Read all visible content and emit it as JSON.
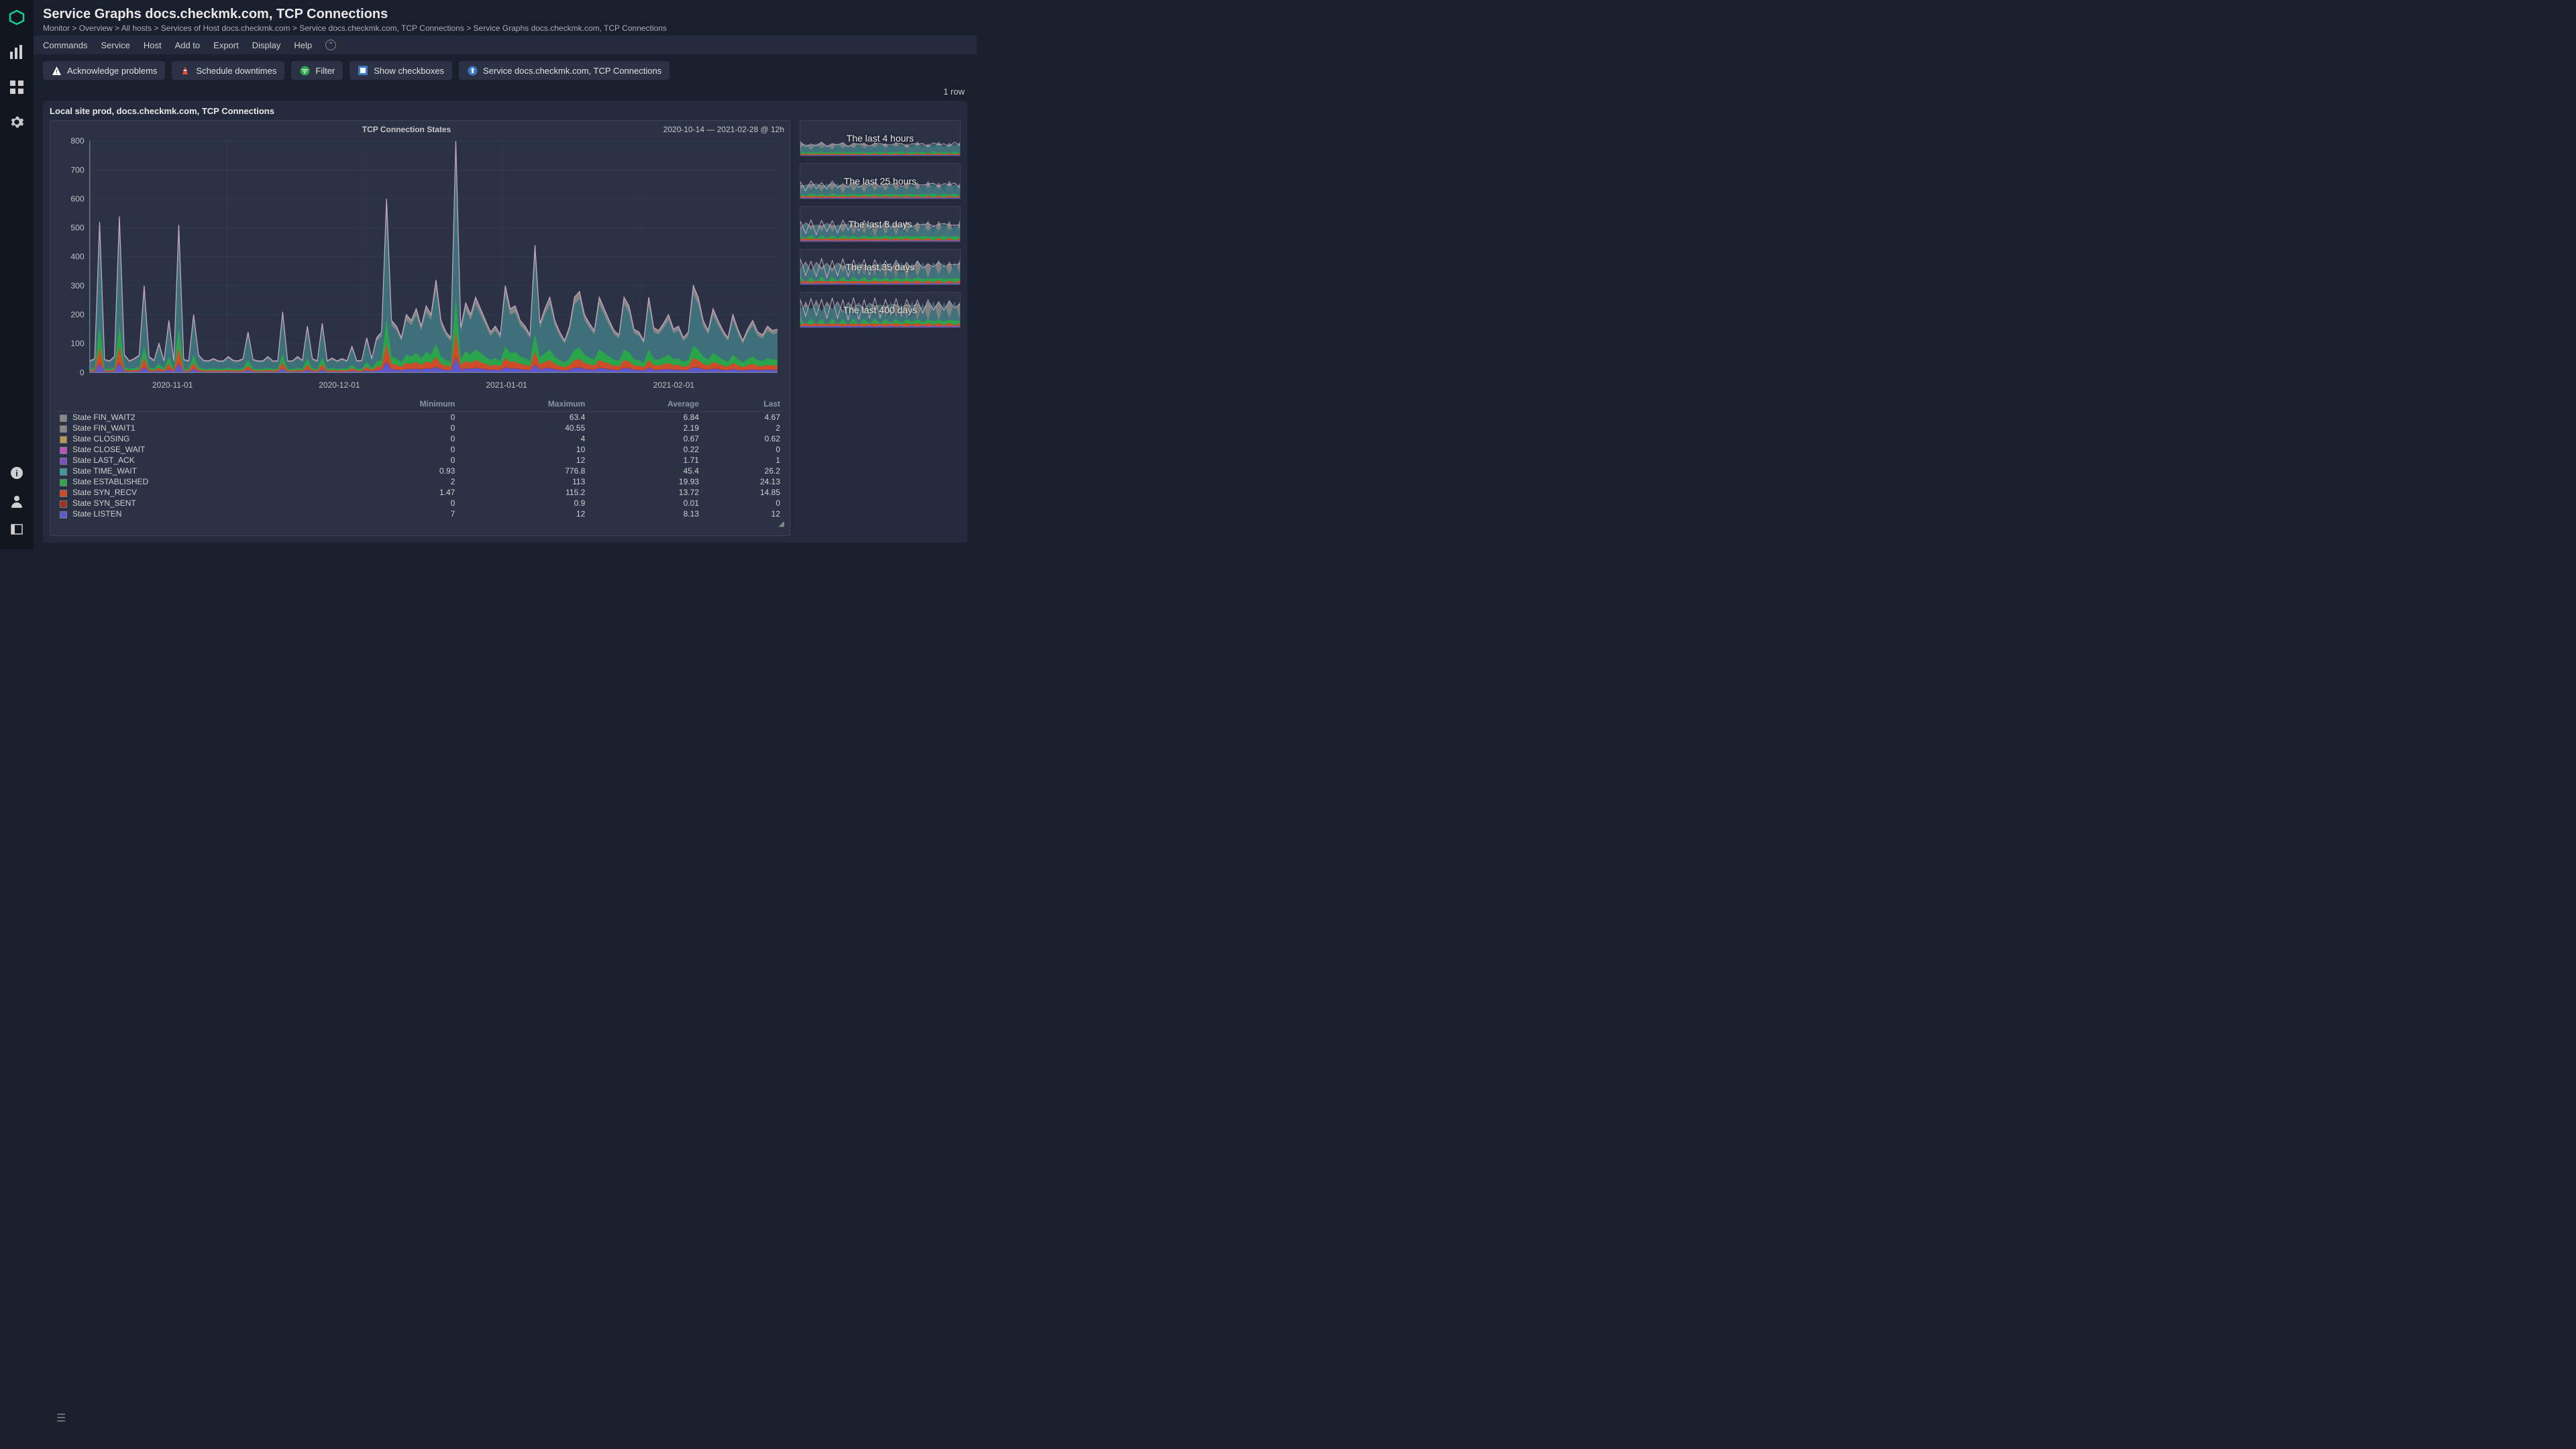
{
  "page": {
    "title": "Service Graphs docs.checkmk.com, TCP Connections",
    "breadcrumb": [
      "Monitor",
      "Overview",
      "All hosts",
      "Services of Host docs.checkmk.com",
      "Service docs.checkmk.com, TCP Connections",
      "Service Graphs docs.checkmk.com, TCP Connections"
    ],
    "breadcrumb_sep": ">"
  },
  "menubar": {
    "items": [
      "Commands",
      "Service",
      "Host",
      "Add to",
      "Export",
      "Display",
      "Help"
    ]
  },
  "toolbar": {
    "ack": "Acknowledge problems",
    "downtime": "Schedule downtimes",
    "filter": "Filter",
    "checkboxes": "Show checkboxes",
    "service_link": "Service docs.checkmk.com, TCP Connections"
  },
  "rowcount": "1 row",
  "panel": {
    "header": "Local site prod, docs.checkmk.com, TCP Connections"
  },
  "graph": {
    "title": "TCP Connection States",
    "range_label": "2020-10-14 — 2021-02-28 @ 12h",
    "type": "stacked-area",
    "ylim": [
      0,
      800
    ],
    "ytick_step": 100,
    "yticks": [
      0,
      100,
      200,
      300,
      400,
      500,
      600,
      700,
      800
    ],
    "xticks": [
      "2020-11-01",
      "2020-12-01",
      "2021-01-01",
      "2021-02-01"
    ],
    "gridline_color": "#3a4258",
    "background_color": "#2b3245",
    "n_points": 140,
    "total_series": [
      40,
      48,
      520,
      45,
      40,
      55,
      540,
      62,
      40,
      48,
      60,
      300,
      55,
      42,
      100,
      40,
      180,
      40,
      510,
      45,
      40,
      200,
      60,
      42,
      40,
      48,
      40,
      40,
      55,
      42,
      40,
      48,
      140,
      45,
      40,
      40,
      55,
      40,
      40,
      210,
      40,
      40,
      55,
      42,
      160,
      48,
      40,
      170,
      40,
      50,
      40,
      48,
      40,
      90,
      40,
      42,
      120,
      48,
      120,
      140,
      600,
      180,
      160,
      120,
      200,
      180,
      220,
      160,
      230,
      200,
      320,
      180,
      140,
      120,
      850,
      155,
      240,
      200,
      260,
      220,
      180,
      140,
      160,
      130,
      300,
      220,
      230,
      180,
      160,
      130,
      440,
      170,
      220,
      260,
      180,
      140,
      110,
      160,
      260,
      280,
      200,
      170,
      145,
      260,
      220,
      180,
      145,
      130,
      260,
      230,
      150,
      140,
      110,
      260,
      155,
      145,
      170,
      200,
      150,
      160,
      120,
      140,
      300,
      260,
      180,
      145,
      220,
      180,
      145,
      120,
      200,
      150,
      110,
      150,
      180,
      140,
      130,
      160,
      145,
      150
    ],
    "series_share": {
      "LISTEN": 0.06,
      "SYN_SENT": 0.005,
      "SYN_RECV": 0.1,
      "ESTABLISHED": 0.14,
      "TIME_WAIT": 0.6,
      "OTHER": 0.095
    },
    "colors": {
      "LISTEN": "#5b5bd6",
      "SYN_SENT": "#a03020",
      "SYN_RECV": "#d44828",
      "ESTABLISHED": "#2aa84a",
      "TIME_WAIT": "#3a6f7a",
      "TOPLINE": "#c8a8c0",
      "OTHER": "#8a8a8a"
    }
  },
  "legend": {
    "columns": [
      "",
      "Minimum",
      "Maximum",
      "Average",
      "Last"
    ],
    "rows": [
      {
        "color": "#888888",
        "name": "State FIN_WAIT2",
        "min": "0",
        "max": "63.4",
        "avg": "6.84",
        "last": "4.67"
      },
      {
        "color": "#888888",
        "name": "State FIN_WAIT1",
        "min": "0",
        "max": "40.55",
        "avg": "2.19",
        "last": "2"
      },
      {
        "color": "#b89850",
        "name": "State CLOSING",
        "min": "0",
        "max": "4",
        "avg": "0.67",
        "last": "0.62"
      },
      {
        "color": "#c050c0",
        "name": "State CLOSE_WAIT",
        "min": "0",
        "max": "10",
        "avg": "0.22",
        "last": "0"
      },
      {
        "color": "#8050c0",
        "name": "State LAST_ACK",
        "min": "0",
        "max": "12",
        "avg": "1.71",
        "last": "1"
      },
      {
        "color": "#3a9aa0",
        "name": "State TIME_WAIT",
        "min": "0.93",
        "max": "776.8",
        "avg": "45.4",
        "last": "26.2"
      },
      {
        "color": "#2aa84a",
        "name": "State ESTABLISHED",
        "min": "2",
        "max": "113",
        "avg": "19.93",
        "last": "24.13"
      },
      {
        "color": "#d44828",
        "name": "State SYN_RECV",
        "min": "1.47",
        "max": "115.2",
        "avg": "13.72",
        "last": "14.85"
      },
      {
        "color": "#a03020",
        "name": "State SYN_SENT",
        "min": "0",
        "max": "0.9",
        "avg": "0.01",
        "last": "0"
      },
      {
        "color": "#5b5bd6",
        "name": "State LISTEN",
        "min": "7",
        "max": "12",
        "avg": "8.13",
        "last": "12"
      }
    ]
  },
  "thumbs": [
    {
      "label": "The last 4 hours"
    },
    {
      "label": "The last 25 hours"
    },
    {
      "label": "The last 8 days"
    },
    {
      "label": "The last 35 days"
    },
    {
      "label": "The last 400 days"
    }
  ]
}
